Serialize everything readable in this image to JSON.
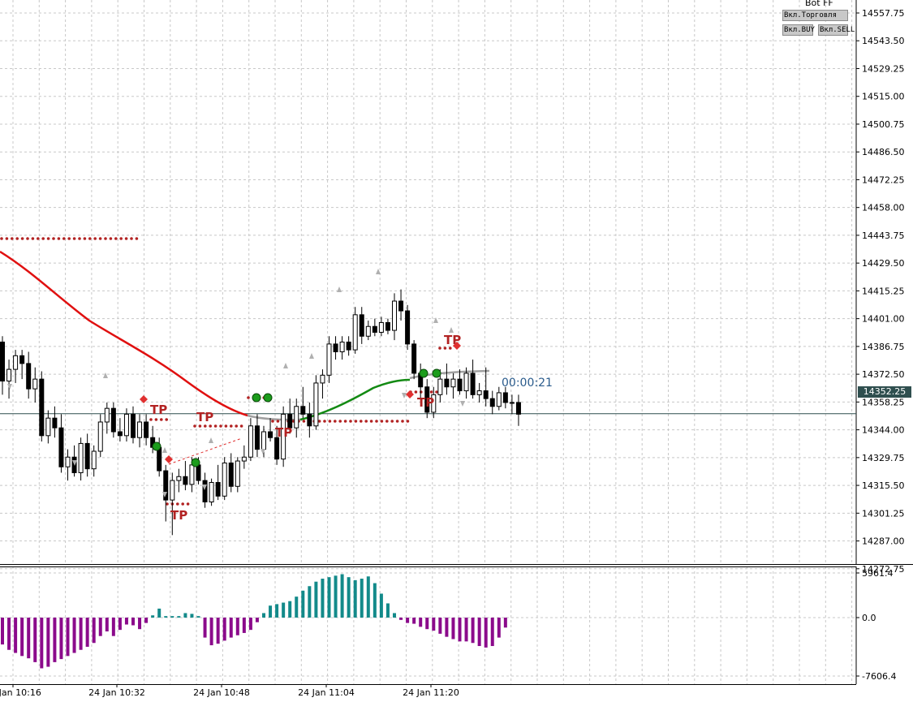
{
  "header": {
    "bot_label": "Bot FF",
    "buttons": [
      {
        "label": "Вкл.Торговля"
      },
      {
        "label": "Вкл.BUY"
      },
      {
        "label": "Вкл.SELL"
      }
    ]
  },
  "timer": "00:00:21",
  "current_price": "14352.25",
  "colors": {
    "bull_candle": "#ffffff",
    "bear_candle": "#000000",
    "ma_red": "#e01010",
    "ma_green": "#138a13",
    "tp_marker": "#b22222",
    "hist_positive": "#138a8a",
    "hist_negative": "#8b0a8b",
    "grid": "#c8c8c8"
  },
  "chart_data": [
    {
      "type": "candlestick",
      "title": "",
      "yticks": [
        "14557.75",
        "14543.50",
        "14529.25",
        "14515.00",
        "14500.75",
        "14486.50",
        "14472.25",
        "14458.00",
        "14443.75",
        "14429.50",
        "14415.25",
        "14401.00",
        "14386.75",
        "14372.50",
        "14358.25",
        "14344.00",
        "14329.75",
        "14315.50",
        "14301.25",
        "14287.00",
        "14272.75"
      ],
      "ylim": [
        14261.5,
        14562
      ],
      "xticks": [
        "24 Jan 10:16",
        "24 Jan 10:32",
        "24 Jan 10:48",
        "24 Jan 11:04",
        "24 Jan 11:20"
      ],
      "grid": true,
      "current_price": 14352.25,
      "candles": [
        {
          "o": 14389,
          "h": 14392,
          "l": 14362,
          "c": 14369
        },
        {
          "o": 14369,
          "h": 14380,
          "l": 14360,
          "c": 14375
        },
        {
          "o": 14375,
          "h": 14385,
          "l": 14368,
          "c": 14382
        },
        {
          "o": 14382,
          "h": 14385,
          "l": 14370,
          "c": 14378
        },
        {
          "o": 14378,
          "h": 14384,
          "l": 14360,
          "c": 14365
        },
        {
          "o": 14365,
          "h": 14376,
          "l": 14358,
          "c": 14370
        },
        {
          "o": 14370,
          "h": 14374,
          "l": 14338,
          "c": 14341
        },
        {
          "o": 14341,
          "h": 14354,
          "l": 14337,
          "c": 14350
        },
        {
          "o": 14350,
          "h": 14356,
          "l": 14340,
          "c": 14345
        },
        {
          "o": 14345,
          "h": 14352,
          "l": 14322,
          "c": 14325
        },
        {
          "o": 14325,
          "h": 14334,
          "l": 14318,
          "c": 14330
        },
        {
          "o": 14330,
          "h": 14336,
          "l": 14320,
          "c": 14322
        },
        {
          "o": 14322,
          "h": 14340,
          "l": 14318,
          "c": 14337
        },
        {
          "o": 14337,
          "h": 14342,
          "l": 14320,
          "c": 14324
        },
        {
          "o": 14324,
          "h": 14336,
          "l": 14320,
          "c": 14333
        },
        {
          "o": 14333,
          "h": 14352,
          "l": 14330,
          "c": 14348
        },
        {
          "o": 14348,
          "h": 14358,
          "l": 14342,
          "c": 14355
        },
        {
          "o": 14355,
          "h": 14358,
          "l": 14340,
          "c": 14343
        },
        {
          "o": 14343,
          "h": 14350,
          "l": 14338,
          "c": 14341
        },
        {
          "o": 14341,
          "h": 14355,
          "l": 14338,
          "c": 14352
        },
        {
          "o": 14352,
          "h": 14356,
          "l": 14337,
          "c": 14340
        },
        {
          "o": 14340,
          "h": 14352,
          "l": 14335,
          "c": 14348
        },
        {
          "o": 14348,
          "h": 14352,
          "l": 14336,
          "c": 14340
        },
        {
          "o": 14340,
          "h": 14346,
          "l": 14332,
          "c": 14335
        },
        {
          "o": 14335,
          "h": 14340,
          "l": 14320,
          "c": 14323
        },
        {
          "o": 14323,
          "h": 14326,
          "l": 14297,
          "c": 14308
        },
        {
          "o": 14308,
          "h": 14322,
          "l": 14290,
          "c": 14318
        },
        {
          "o": 14318,
          "h": 14324,
          "l": 14312,
          "c": 14320
        },
        {
          "o": 14320,
          "h": 14328,
          "l": 14313,
          "c": 14316
        },
        {
          "o": 14316,
          "h": 14330,
          "l": 14312,
          "c": 14326
        },
        {
          "o": 14326,
          "h": 14330,
          "l": 14316,
          "c": 14318
        },
        {
          "o": 14318,
          "h": 14322,
          "l": 14304,
          "c": 14307
        },
        {
          "o": 14307,
          "h": 14319,
          "l": 14305,
          "c": 14317
        },
        {
          "o": 14317,
          "h": 14326,
          "l": 14308,
          "c": 14310
        },
        {
          "o": 14310,
          "h": 14330,
          "l": 14308,
          "c": 14327
        },
        {
          "o": 14327,
          "h": 14332,
          "l": 14312,
          "c": 14315
        },
        {
          "o": 14315,
          "h": 14330,
          "l": 14312,
          "c": 14328
        },
        {
          "o": 14328,
          "h": 14336,
          "l": 14324,
          "c": 14330
        },
        {
          "o": 14330,
          "h": 14350,
          "l": 14328,
          "c": 14346
        },
        {
          "o": 14346,
          "h": 14352,
          "l": 14330,
          "c": 14334
        },
        {
          "o": 14334,
          "h": 14346,
          "l": 14330,
          "c": 14343
        },
        {
          "o": 14343,
          "h": 14350,
          "l": 14338,
          "c": 14340
        },
        {
          "o": 14340,
          "h": 14346,
          "l": 14326,
          "c": 14329
        },
        {
          "o": 14329,
          "h": 14356,
          "l": 14325,
          "c": 14352
        },
        {
          "o": 14352,
          "h": 14360,
          "l": 14342,
          "c": 14345
        },
        {
          "o": 14345,
          "h": 14360,
          "l": 14340,
          "c": 14356
        },
        {
          "o": 14356,
          "h": 14366,
          "l": 14350,
          "c": 14352
        },
        {
          "o": 14352,
          "h": 14358,
          "l": 14340,
          "c": 14346
        },
        {
          "o": 14346,
          "h": 14372,
          "l": 14344,
          "c": 14368
        },
        {
          "o": 14368,
          "h": 14375,
          "l": 14360,
          "c": 14372
        },
        {
          "o": 14372,
          "h": 14392,
          "l": 14368,
          "c": 14388
        },
        {
          "o": 14388,
          "h": 14392,
          "l": 14380,
          "c": 14384
        },
        {
          "o": 14384,
          "h": 14392,
          "l": 14380,
          "c": 14389
        },
        {
          "o": 14389,
          "h": 14392,
          "l": 14382,
          "c": 14385
        },
        {
          "o": 14385,
          "h": 14407,
          "l": 14383,
          "c": 14403
        },
        {
          "o": 14403,
          "h": 14407,
          "l": 14388,
          "c": 14392
        },
        {
          "o": 14392,
          "h": 14400,
          "l": 14390,
          "c": 14397
        },
        {
          "o": 14397,
          "h": 14401,
          "l": 14392,
          "c": 14394
        },
        {
          "o": 14394,
          "h": 14402,
          "l": 14392,
          "c": 14399
        },
        {
          "o": 14399,
          "h": 14401,
          "l": 14393,
          "c": 14395
        },
        {
          "o": 14395,
          "h": 14414,
          "l": 14390,
          "c": 14410
        },
        {
          "o": 14410,
          "h": 14416,
          "l": 14400,
          "c": 14405
        },
        {
          "o": 14405,
          "h": 14408,
          "l": 14385,
          "c": 14388
        },
        {
          "o": 14388,
          "h": 14390,
          "l": 14370,
          "c": 14373
        },
        {
          "o": 14373,
          "h": 14378,
          "l": 14360,
          "c": 14366
        },
        {
          "o": 14366,
          "h": 14370,
          "l": 14350,
          "c": 14353
        },
        {
          "o": 14353,
          "h": 14366,
          "l": 14350,
          "c": 14362
        },
        {
          "o": 14362,
          "h": 14375,
          "l": 14358,
          "c": 14370
        },
        {
          "o": 14370,
          "h": 14378,
          "l": 14362,
          "c": 14366
        },
        {
          "o": 14366,
          "h": 14373,
          "l": 14360,
          "c": 14370
        },
        {
          "o": 14370,
          "h": 14375,
          "l": 14362,
          "c": 14364
        },
        {
          "o": 14364,
          "h": 14376,
          "l": 14360,
          "c": 14373
        },
        {
          "o": 14373,
          "h": 14380,
          "l": 14360,
          "c": 14362
        },
        {
          "o": 14362,
          "h": 14368,
          "l": 14358,
          "c": 14364
        },
        {
          "o": 14364,
          "h": 14376,
          "l": 14356,
          "c": 14360
        },
        {
          "o": 14360,
          "h": 14364,
          "l": 14352,
          "c": 14356
        },
        {
          "o": 14356,
          "h": 14366,
          "l": 14354,
          "c": 14363
        },
        {
          "o": 14363,
          "h": 14366,
          "l": 14355,
          "c": 14358
        },
        {
          "o": 14358,
          "h": 14362,
          "l": 14352,
          "c": 14358
        },
        {
          "o": 14358,
          "h": 14362,
          "l": 14346,
          "c": 14352
        }
      ]
    },
    {
      "type": "bar",
      "title": "",
      "yticks": [
        "5961.4",
        "0.0",
        "-7606.4"
      ],
      "ylim": [
        -7606.4,
        5961.4
      ],
      "values": [
        -3500,
        -4200,
        -4600,
        -5000,
        -5300,
        -5800,
        -6600,
        -6400,
        -5800,
        -5400,
        -5000,
        -4600,
        -4200,
        -3800,
        -3300,
        -2400,
        -1800,
        -2400,
        -1600,
        -900,
        -1000,
        -1500,
        -700,
        300,
        1200,
        200,
        200,
        200,
        600,
        500,
        200,
        -2600,
        -3600,
        -3400,
        -3000,
        -2600,
        -2300,
        -2000,
        -1600,
        -600,
        600,
        1600,
        1800,
        2000,
        2200,
        2800,
        3600,
        4200,
        4800,
        5200,
        5400,
        5600,
        5800,
        5400,
        5000,
        5200,
        5500,
        4600,
        3200,
        1900,
        600,
        -300,
        -700,
        -800,
        -1200,
        -1500,
        -1700,
        -2100,
        -2500,
        -2800,
        -3100,
        -3100,
        -3300,
        -3700,
        -3900,
        -3700,
        -2600,
        -1300
      ]
    }
  ]
}
